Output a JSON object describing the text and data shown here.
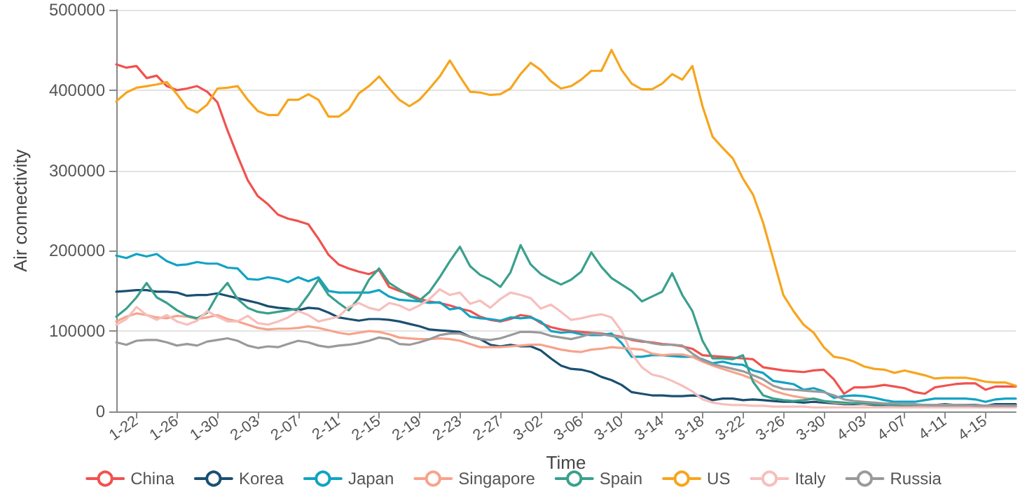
{
  "chart_data": {
    "type": "line",
    "xlabel": "Time",
    "ylabel": "Air connectivity",
    "categories": [
      null,
      null,
      "1-22",
      null,
      null,
      null,
      "1-26",
      null,
      null,
      null,
      "1-30",
      null,
      null,
      null,
      "2-03",
      null,
      null,
      null,
      "2-07",
      null,
      null,
      null,
      "2-11",
      null,
      null,
      null,
      "2-15",
      null,
      null,
      null,
      "2-19",
      null,
      null,
      null,
      "2-23",
      null,
      null,
      null,
      "2-27",
      null,
      null,
      null,
      "3-02",
      null,
      null,
      null,
      "3-06",
      null,
      null,
      null,
      "3-10",
      null,
      null,
      null,
      "3-14",
      null,
      null,
      null,
      "3-18",
      null,
      null,
      null,
      "3-22",
      null,
      null,
      null,
      "3-26",
      null,
      null,
      null,
      "3-30",
      null,
      null,
      null,
      "4-03",
      null,
      null,
      null,
      "4-07",
      null,
      null,
      null,
      "4-11",
      null,
      null,
      null,
      "4-15",
      null,
      null,
      null
    ],
    "ylim": [
      0,
      500000
    ],
    "yticks": [
      0,
      100000,
      200000,
      300000,
      400000,
      500000
    ],
    "grid": "y",
    "legend": "bottom",
    "marker": "none",
    "line_style": "solid",
    "series": [
      {
        "name": "China",
        "color": "#f0524f",
        "values": [
          432000,
          428000,
          430000,
          415000,
          418000,
          405000,
          400000,
          402000,
          405000,
          398000,
          385000,
          350000,
          318000,
          288000,
          268000,
          258000,
          245000,
          240000,
          237000,
          233000,
          215000,
          195000,
          183000,
          178000,
          174000,
          171000,
          176000,
          155000,
          150000,
          146000,
          140000,
          137000,
          135000,
          132000,
          128000,
          125000,
          118000,
          114000,
          112000,
          115000,
          120000,
          118000,
          110000,
          105000,
          102000,
          100000,
          99000,
          98000,
          97000,
          95000,
          93000,
          89000,
          87000,
          86000,
          84000,
          83000,
          81000,
          78000,
          70000,
          69000,
          68000,
          67000,
          66000,
          65000,
          55000,
          53000,
          51000,
          50000,
          49000,
          51000,
          52000,
          40000,
          22000,
          30000,
          30000,
          31000,
          33000,
          31000,
          29000,
          24000,
          22000,
          30000,
          32000,
          34000,
          35000,
          35000,
          27000,
          31000,
          31000,
          31000
        ]
      },
      {
        "name": "Korea",
        "color": "#1b4f72",
        "values": [
          149000,
          150000,
          151000,
          151000,
          149000,
          149000,
          148000,
          144000,
          145000,
          145000,
          147000,
          144000,
          141000,
          138000,
          135000,
          131000,
          129000,
          128000,
          126000,
          129000,
          128000,
          123000,
          117000,
          115000,
          113000,
          115000,
          115000,
          114000,
          112000,
          109000,
          106000,
          102000,
          101000,
          100000,
          99000,
          93000,
          90000,
          83000,
          81000,
          83000,
          81000,
          81000,
          76000,
          66000,
          57000,
          53000,
          52000,
          49000,
          43000,
          39000,
          33000,
          24000,
          22000,
          20000,
          20000,
          19000,
          19000,
          20000,
          19000,
          14000,
          16000,
          16000,
          14000,
          15000,
          14000,
          13000,
          12000,
          12000,
          11000,
          12000,
          11000,
          10000,
          9000,
          9000,
          9000,
          8000,
          8000,
          8000,
          7000,
          8000,
          8000,
          8000,
          9000,
          8000,
          8000,
          8000,
          7000,
          9000,
          9000,
          9000
        ]
      },
      {
        "name": "Japan",
        "color": "#12a3c3",
        "values": [
          194000,
          191000,
          196000,
          193000,
          196000,
          187000,
          182000,
          183000,
          186000,
          184000,
          184000,
          179000,
          178000,
          165000,
          164000,
          167000,
          165000,
          161000,
          167000,
          162000,
          167000,
          150000,
          148000,
          148000,
          148000,
          148000,
          151000,
          143000,
          139000,
          138000,
          137000,
          135000,
          136000,
          127000,
          129000,
          118000,
          116000,
          115000,
          113000,
          117000,
          116000,
          117000,
          112000,
          100000,
          98000,
          99000,
          96000,
          95000,
          95000,
          97000,
          85000,
          68000,
          68000,
          70000,
          70000,
          69000,
          68000,
          68000,
          65000,
          60000,
          62000,
          59000,
          58000,
          51000,
          48000,
          38000,
          36000,
          34000,
          27000,
          29000,
          25000,
          17000,
          19000,
          20000,
          19000,
          17000,
          14000,
          12000,
          12000,
          12000,
          14000,
          16000,
          16000,
          16000,
          16000,
          15000,
          12000,
          15000,
          16000,
          16000
        ]
      },
      {
        "name": "Singapore",
        "color": "#f7a38b",
        "values": [
          112000,
          118000,
          122000,
          120000,
          117000,
          116000,
          119000,
          118000,
          115000,
          117000,
          120000,
          115000,
          112000,
          108000,
          104000,
          102000,
          103000,
          103000,
          104000,
          106000,
          104000,
          101000,
          98000,
          96000,
          98000,
          100000,
          99000,
          96000,
          92000,
          91000,
          90000,
          90000,
          91000,
          90000,
          88000,
          84000,
          80000,
          80000,
          80000,
          81000,
          82000,
          83000,
          83000,
          80000,
          77000,
          75000,
          74000,
          77000,
          78000,
          80000,
          79000,
          78000,
          77000,
          72000,
          70000,
          71000,
          71000,
          68000,
          62000,
          57000,
          53000,
          49000,
          45000,
          40000,
          33000,
          26000,
          22000,
          19000,
          17000,
          15000,
          13000,
          11000,
          10000,
          10000,
          9000,
          9000,
          9000,
          8000,
          8000,
          8000,
          8000,
          8000,
          8000,
          8000,
          7000,
          7000,
          7000,
          7000,
          7000,
          7000
        ]
      },
      {
        "name": "Spain",
        "color": "#3aa08e",
        "values": [
          118000,
          128000,
          142000,
          160000,
          142000,
          135000,
          126000,
          119000,
          116000,
          123000,
          145000,
          160000,
          140000,
          129000,
          124000,
          122000,
          124000,
          126000,
          128000,
          145000,
          164000,
          145000,
          135000,
          126000,
          141000,
          164000,
          178000,
          160000,
          152000,
          144000,
          138000,
          149000,
          167000,
          187000,
          205000,
          181000,
          170000,
          164000,
          155000,
          173000,
          207000,
          183000,
          171000,
          164000,
          158000,
          164000,
          174000,
          198000,
          180000,
          166000,
          158000,
          150000,
          137000,
          143000,
          149000,
          172000,
          145000,
          125000,
          88000,
          66000,
          66000,
          65000,
          70000,
          37000,
          20000,
          16000,
          14000,
          13000,
          14000,
          16000,
          13000,
          12000,
          11000,
          10000,
          10000,
          9000,
          9000,
          8000,
          8000,
          8000,
          8000,
          7000,
          7000,
          7000,
          7000,
          7000,
          6000,
          6000,
          6000,
          6000
        ]
      },
      {
        "name": "US",
        "color": "#f7a51d",
        "values": [
          386000,
          397000,
          403000,
          405000,
          407000,
          410000,
          395000,
          378000,
          372000,
          382000,
          402000,
          403000,
          405000,
          388000,
          374000,
          369000,
          369000,
          388000,
          388000,
          395000,
          388000,
          367000,
          367000,
          376000,
          396000,
          405000,
          417000,
          402000,
          388000,
          380000,
          388000,
          402000,
          417000,
          437000,
          417000,
          398000,
          397000,
          394000,
          395000,
          402000,
          420000,
          434000,
          425000,
          411000,
          402000,
          405000,
          413000,
          424000,
          424000,
          450000,
          425000,
          408000,
          401000,
          401000,
          408000,
          420000,
          413000,
          430000,
          380000,
          342000,
          328000,
          315000,
          290000,
          270000,
          235000,
          190000,
          145000,
          125000,
          108000,
          98000,
          80000,
          68000,
          66000,
          62000,
          56000,
          53000,
          52000,
          48000,
          51000,
          48000,
          45000,
          41000,
          42000,
          42000,
          42000,
          40000,
          37000,
          36000,
          36000,
          32000
        ]
      },
      {
        "name": "Italy",
        "color": "#f6bfbc",
        "values": [
          108000,
          115000,
          130000,
          120000,
          114000,
          120000,
          112000,
          108000,
          113000,
          125000,
          118000,
          112000,
          112000,
          119000,
          110000,
          108000,
          112000,
          117000,
          125000,
          120000,
          112000,
          115000,
          118000,
          130000,
          135000,
          129000,
          126000,
          135000,
          132000,
          126000,
          132000,
          140000,
          152000,
          145000,
          148000,
          134000,
          138000,
          129000,
          140000,
          148000,
          145000,
          141000,
          128000,
          133000,
          124000,
          114000,
          116000,
          119000,
          121000,
          117000,
          100000,
          72000,
          55000,
          46000,
          43000,
          38000,
          32000,
          25000,
          15000,
          11000,
          9000,
          8000,
          8000,
          7000,
          7000,
          6000,
          6000,
          6000,
          6000,
          5000,
          5000,
          5000,
          5000,
          5000,
          5000,
          5000,
          5000,
          5000,
          5000,
          5000,
          5000,
          5000,
          5000,
          5000,
          5000,
          5000,
          5000,
          5000,
          5000,
          5000
        ]
      },
      {
        "name": "Russia",
        "color": "#9a9a9a",
        "values": [
          86000,
          83000,
          88000,
          89000,
          89000,
          86000,
          82000,
          84000,
          82000,
          87000,
          89000,
          91000,
          88000,
          82000,
          79000,
          81000,
          80000,
          84000,
          88000,
          86000,
          82000,
          80000,
          82000,
          83000,
          85000,
          88000,
          92000,
          90000,
          84000,
          83000,
          86000,
          90000,
          95000,
          97000,
          97000,
          93000,
          90000,
          89000,
          91000,
          95000,
          99000,
          99000,
          98000,
          94000,
          92000,
          90000,
          93000,
          97000,
          96000,
          94000,
          92000,
          90000,
          88000,
          85000,
          83000,
          83000,
          82000,
          72000,
          64000,
          59000,
          56000,
          53000,
          50000,
          45000,
          40000,
          32000,
          28000,
          27000,
          26000,
          25000,
          24000,
          20000,
          15000,
          13000,
          12000,
          11000,
          10000,
          10000,
          9000,
          9000,
          8000,
          8000,
          8000,
          8000,
          8000,
          7000,
          7000,
          7000,
          7000,
          7000
        ]
      }
    ]
  }
}
